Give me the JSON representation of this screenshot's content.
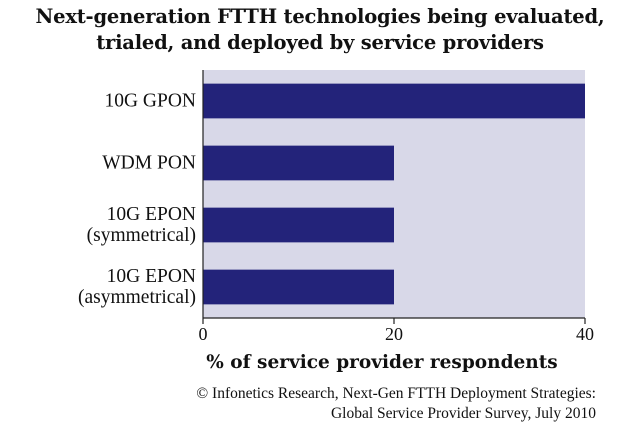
{
  "chart_data": {
    "type": "bar",
    "orientation": "horizontal",
    "title": [
      "Next-generation FTTH technologies being evaluated,",
      "trialed, and deployed by service providers"
    ],
    "categories": [
      [
        "10G GPON"
      ],
      [
        "WDM PON"
      ],
      [
        "10G EPON",
        "(symmetrical)"
      ],
      [
        "10G EPON",
        "(asymmetrical)"
      ]
    ],
    "values": [
      40,
      20,
      20,
      20
    ],
    "xlabel": "% of service provider respondents",
    "xlim": [
      0,
      40
    ],
    "xticks": [
      0,
      20,
      40
    ],
    "grid": false,
    "legend": "none",
    "colors": {
      "bar": "#23237a",
      "plot_bg": "#d8d8e8",
      "text": "#111111"
    },
    "source": [
      "© Infonetics Research, Next-Gen FTTH Deployment Strategies:",
      "Global Service Provider Survey, July 2010"
    ]
  }
}
